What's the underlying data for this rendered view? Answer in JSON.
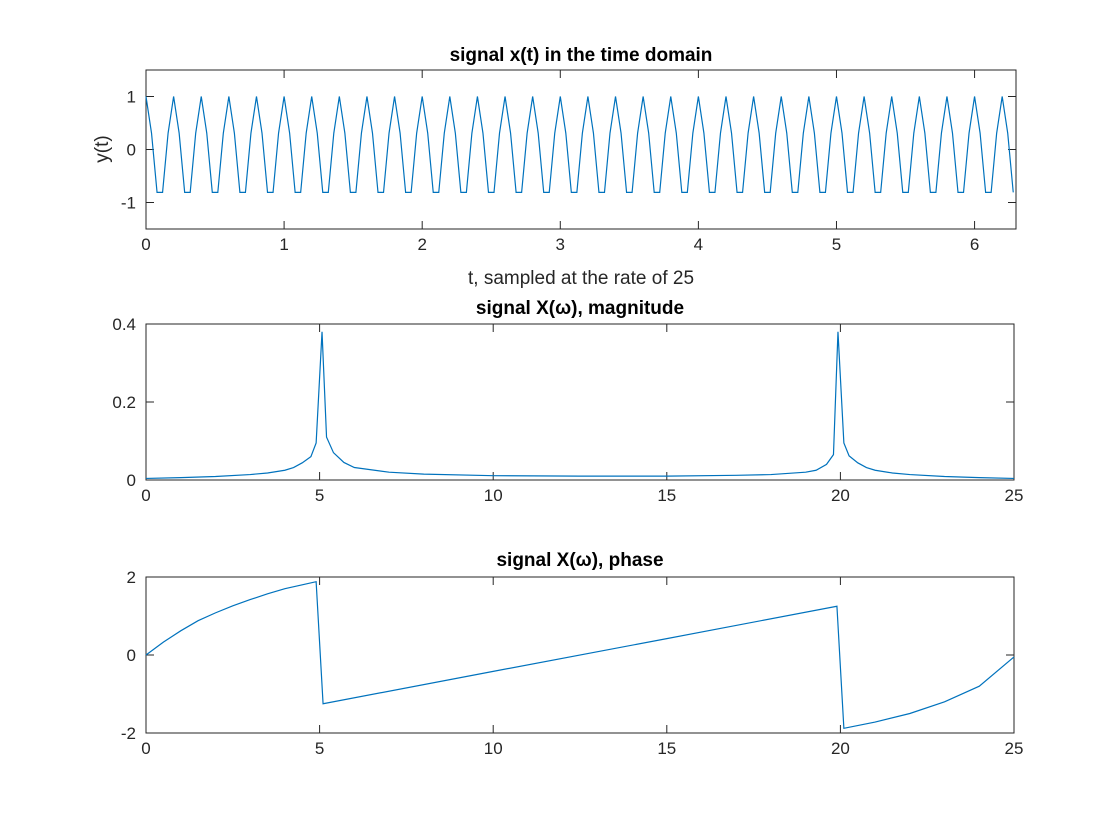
{
  "figure": {
    "background": "#ffffff",
    "line_color": "#0072BD",
    "axis_color": "#262626"
  },
  "chart_data": [
    {
      "type": "line",
      "title": "signal x(t) in the time domain",
      "xlabel": "t, sampled at the rate of 25",
      "ylabel": "y(t)",
      "xlim": [
        0,
        6.3
      ],
      "ylim": [
        -1.5,
        1.5
      ],
      "xticks": [
        0,
        1,
        2,
        3,
        4,
        5,
        6
      ],
      "yticks": [
        -1,
        0,
        1
      ],
      "grid": false,
      "series": [
        {
          "sample_rate": 25,
          "x_start": 0,
          "x_step": 0.04,
          "values_pattern": [
            1,
            0.309,
            -0.809,
            -0.809,
            0.309
          ],
          "x_end": 6.28
        }
      ]
    },
    {
      "type": "line",
      "title": "signal X(ω), magnitude",
      "xlabel": "",
      "ylabel": "",
      "xlim": [
        0,
        25
      ],
      "ylim": [
        0,
        0.4
      ],
      "xticks": [
        0,
        5,
        10,
        15,
        20,
        25
      ],
      "yticks": [
        0,
        0.2,
        0.4
      ],
      "grid": false,
      "series": [
        {
          "x": [
            0,
            1,
            2,
            3,
            3.5,
            4,
            4.25,
            4.5,
            4.75,
            4.9,
            5.07,
            5.2,
            5.4,
            5.7,
            6,
            7,
            8,
            10,
            12.5,
            15,
            17,
            18,
            19,
            19.3,
            19.6,
            19.8,
            19.93,
            20.1,
            20.25,
            20.5,
            20.75,
            21,
            21.5,
            22,
            23,
            24,
            25
          ],
          "y": [
            0.004,
            0.006,
            0.009,
            0.014,
            0.018,
            0.025,
            0.032,
            0.044,
            0.06,
            0.095,
            0.38,
            0.11,
            0.07,
            0.045,
            0.032,
            0.02,
            0.015,
            0.011,
            0.01,
            0.01,
            0.012,
            0.014,
            0.02,
            0.025,
            0.04,
            0.065,
            0.38,
            0.095,
            0.062,
            0.044,
            0.032,
            0.025,
            0.018,
            0.014,
            0.009,
            0.006,
            0.004
          ]
        }
      ]
    },
    {
      "type": "line",
      "title": "signal X(ω), phase",
      "xlabel": "",
      "ylabel": "",
      "xlim": [
        0,
        25
      ],
      "ylim": [
        -2,
        2
      ],
      "xticks": [
        0,
        5,
        10,
        15,
        20,
        25
      ],
      "yticks": [
        -2,
        0,
        2
      ],
      "grid": false,
      "series": [
        {
          "x": [
            0,
            0.5,
            1,
            1.5,
            2,
            2.5,
            3,
            3.5,
            4,
            4.5,
            4.9,
            5.1,
            10,
            15,
            19.9,
            20.1,
            21,
            22,
            23,
            24,
            25
          ],
          "y": [
            0,
            0.33,
            0.62,
            0.88,
            1.08,
            1.26,
            1.42,
            1.57,
            1.7,
            1.8,
            1.88,
            -1.25,
            -0.42,
            0.42,
            1.25,
            -1.88,
            -1.72,
            -1.5,
            -1.2,
            -0.8,
            -0.05
          ]
        }
      ]
    }
  ]
}
